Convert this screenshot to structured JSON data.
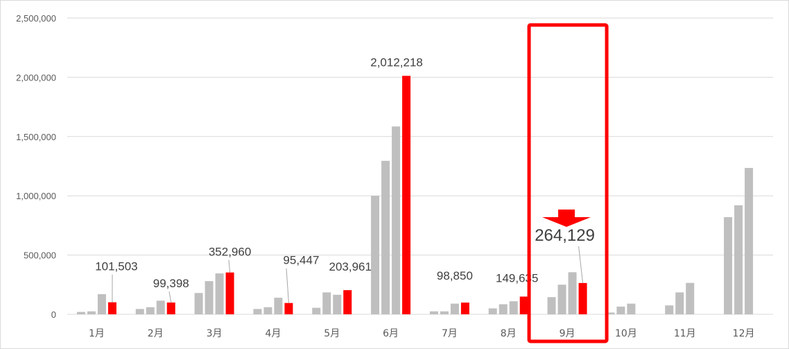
{
  "chart_data": {
    "type": "bar",
    "categories": [
      "1月",
      "2月",
      "3月",
      "4月",
      "5月",
      "6月",
      "7月",
      "8月",
      "9月",
      "10月",
      "11月",
      "12月"
    ],
    "series": [
      {
        "values": [
          20000,
          45000,
          180000,
          45000,
          55000,
          1000000,
          25000,
          50000,
          145000,
          15000,
          75000,
          820000
        ],
        "color": "#bfbfbf"
      },
      {
        "values": [
          25000,
          60000,
          280000,
          60000,
          185000,
          1295000,
          25000,
          85000,
          250000,
          65000,
          185000,
          920000
        ],
        "color": "#bfbfbf"
      },
      {
        "values": [
          170000,
          115000,
          345000,
          140000,
          165000,
          1585000,
          90000,
          110000,
          355000,
          90000,
          265000,
          1235000
        ],
        "color": "#bfbfbf"
      },
      {
        "values": [
          101503,
          99398,
          352960,
          95447,
          203961,
          2012218,
          98850,
          149635,
          264129,
          null,
          null,
          null
        ],
        "color": "#ff0000"
      }
    ],
    "data_labels": [
      "101,503",
      "99,398",
      "352,960",
      "95,447",
      "203,961",
      "2,012,218",
      "98,850",
      "149,635",
      "264,129"
    ],
    "y_ticks": [
      "0",
      "500,000",
      "1,000,000",
      "1,500,000",
      "2,000,000",
      "2,500,000"
    ],
    "ylim": [
      0,
      2500000
    ],
    "grid": true,
    "highlight": {
      "category": "9月",
      "color": "#ff0000",
      "arrow": "down"
    }
  }
}
